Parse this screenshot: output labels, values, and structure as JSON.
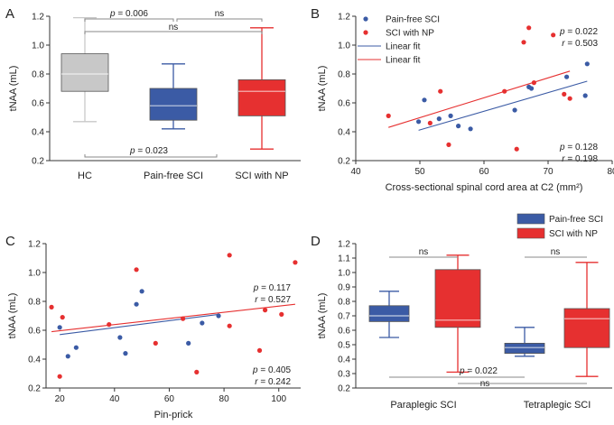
{
  "colors": {
    "blue": "#3b5ba5",
    "red": "#e63030",
    "gray": "#c8c8c8",
    "axis": "#333333",
    "bracket": "#888888"
  },
  "chart_data": [
    {
      "panel": "A",
      "type": "box",
      "ylabel": "tNAA (mL)",
      "ylim": [
        0.2,
        1.2
      ],
      "yticks": [
        0.2,
        0.4,
        0.6,
        0.8,
        1.0,
        1.2
      ],
      "ytick_labels": [
        "0.2",
        "0.4",
        "0.6",
        "0.8",
        "1.0",
        "1.2"
      ],
      "categories": [
        "HC",
        "Pain-free SCI",
        "SCI with NP"
      ],
      "boxes": [
        {
          "name": "HC",
          "color": "gray",
          "min": 0.47,
          "q1": 0.68,
          "median": 0.8,
          "q3": 0.94,
          "max": 1.19
        },
        {
          "name": "Pain-free SCI",
          "color": "blue",
          "min": 0.42,
          "q1": 0.48,
          "median": 0.58,
          "q3": 0.7,
          "max": 0.87
        },
        {
          "name": "SCI with NP",
          "color": "red",
          "min": 0.28,
          "q1": 0.51,
          "median": 0.68,
          "q3": 0.76,
          "max": 1.12
        }
      ],
      "brackets": [
        {
          "from": 0,
          "to": 1,
          "y": 1.2,
          "label": "p = 0.006"
        },
        {
          "from": 1,
          "to": 2,
          "y": 1.2,
          "label": "ns"
        },
        {
          "from": 0,
          "to": 2,
          "y": 1.13,
          "label": "ns"
        },
        {
          "from": 0,
          "to": 2,
          "y": 0.2,
          "label": "p = 0.023",
          "below": true
        }
      ]
    },
    {
      "panel": "B",
      "type": "scatter",
      "xlabel": "Cross-sectional spinal cord area at C2 (mm²)",
      "ylabel": "tNAA (mL)",
      "xlim": [
        40,
        80
      ],
      "ylim": [
        0.2,
        1.2
      ],
      "xticks": [
        40,
        50,
        60,
        70,
        80
      ],
      "xtick_labels": [
        "40",
        "50",
        "60",
        "70",
        "80"
      ],
      "yticks": [
        0.2,
        0.4,
        0.6,
        0.8,
        1.0,
        1.2
      ],
      "ytick_labels": [
        "0.2",
        "0.4",
        "0.6",
        "0.8",
        "1.0",
        "1.2"
      ],
      "legend": [
        "Pain-free SCI",
        "SCI with NP",
        "Linear fit",
        "Linear fit"
      ],
      "series": [
        {
          "name": "Pain-free SCI",
          "color": "blue",
          "x": [
            49.8,
            50.7,
            53.0,
            54.8,
            56.0,
            57.9,
            64.8,
            67.0,
            67.4,
            72.9,
            75.8,
            76.1
          ],
          "y": [
            0.47,
            0.62,
            0.49,
            0.51,
            0.44,
            0.42,
            0.55,
            0.71,
            0.7,
            0.78,
            0.65,
            0.87
          ],
          "fit": [
            0.41,
            0.75
          ],
          "p": "p = 0.022",
          "r": "r = 0.503"
        },
        {
          "name": "SCI with NP",
          "color": "red",
          "x": [
            45.1,
            51.6,
            53.2,
            54.5,
            63.2,
            65.1,
            66.2,
            67.0,
            67.8,
            70.8,
            72.5,
            73.4
          ],
          "y": [
            0.51,
            0.46,
            0.68,
            0.31,
            0.68,
            0.28,
            1.02,
            1.12,
            0.74,
            1.07,
            0.66,
            0.63
          ],
          "fit": [
            0.43,
            0.82
          ],
          "p": "p = 0.128",
          "r": "r = 0.198"
        }
      ]
    },
    {
      "panel": "C",
      "type": "scatter",
      "xlabel": "Pin-prick",
      "ylabel": "tNAA (mL)",
      "xlim": [
        15,
        108
      ],
      "ylim": [
        0.2,
        1.2
      ],
      "xticks": [
        20,
        40,
        60,
        80,
        100
      ],
      "xtick_labels": [
        "20",
        "40",
        "60",
        "80",
        "100"
      ],
      "yticks": [
        0.2,
        0.4,
        0.6,
        0.8,
        1.0,
        1.2
      ],
      "ytick_labels": [
        "0.2",
        "0.4",
        "0.6",
        "0.8",
        "1.0",
        "1.2"
      ],
      "series": [
        {
          "name": "Pain-free SCI",
          "color": "blue",
          "x": [
            20,
            23,
            26,
            42,
            44,
            48,
            50,
            67,
            72,
            78
          ],
          "y": [
            0.62,
            0.42,
            0.48,
            0.55,
            0.44,
            0.78,
            0.87,
            0.51,
            0.65,
            0.7
          ],
          "fit": [
            0.57,
            0.71
          ],
          "p": "p = 0.117",
          "r": "r = 0.527"
        },
        {
          "name": "SCI with NP",
          "color": "red",
          "x": [
            17,
            20,
            21,
            38,
            48,
            55,
            65,
            70,
            82,
            82,
            93,
            95,
            101,
            106
          ],
          "y": [
            0.76,
            0.28,
            0.69,
            0.64,
            1.02,
            0.51,
            0.68,
            0.31,
            1.12,
            0.63,
            0.46,
            0.74,
            0.71,
            1.07
          ],
          "fit": [
            0.59,
            0.78
          ],
          "p": "p = 0.405",
          "r": "r = 0.242"
        }
      ]
    },
    {
      "panel": "D",
      "type": "box",
      "ylabel": "tNAA (mL)",
      "ylim": [
        0.2,
        1.2
      ],
      "yticks": [
        0.2,
        0.3,
        0.4,
        0.5,
        0.6,
        0.7,
        0.8,
        0.9,
        1.0,
        1.1,
        1.2
      ],
      "ytick_labels": [
        "0.2",
        "0.3",
        "0.4",
        "0.5",
        "0.6",
        "0.7",
        "0.8",
        "0.9",
        "1.0",
        "1.1",
        "1.2"
      ],
      "categories": [
        "Paraplegic SCI",
        "Tetraplegic SCI"
      ],
      "legend": [
        "Pain-free SCI",
        "SCI with NP"
      ],
      "boxes": [
        {
          "name": "Paraplegic SCI - Pain-free SCI",
          "color": "blue",
          "group": 0,
          "min": 0.55,
          "q1": 0.66,
          "median": 0.7,
          "q3": 0.77,
          "max": 0.87
        },
        {
          "name": "Paraplegic SCI - SCI with NP",
          "color": "red",
          "group": 0,
          "min": 0.31,
          "q1": 0.62,
          "median": 0.67,
          "q3": 1.02,
          "max": 1.12
        },
        {
          "name": "Tetraplegic SCI - Pain-free SCI",
          "color": "blue",
          "group": 1,
          "min": 0.42,
          "q1": 0.44,
          "median": 0.48,
          "q3": 0.51,
          "max": 0.62
        },
        {
          "name": "Tetraplegic SCI - SCI with NP",
          "color": "red",
          "group": 1,
          "min": 0.28,
          "q1": 0.48,
          "median": 0.68,
          "q3": 0.75,
          "max": 1.07
        }
      ],
      "brackets": [
        {
          "label": "ns"
        },
        {
          "label": "ns"
        },
        {
          "label": "p = 0.022"
        },
        {
          "label": "ns"
        }
      ]
    }
  ]
}
